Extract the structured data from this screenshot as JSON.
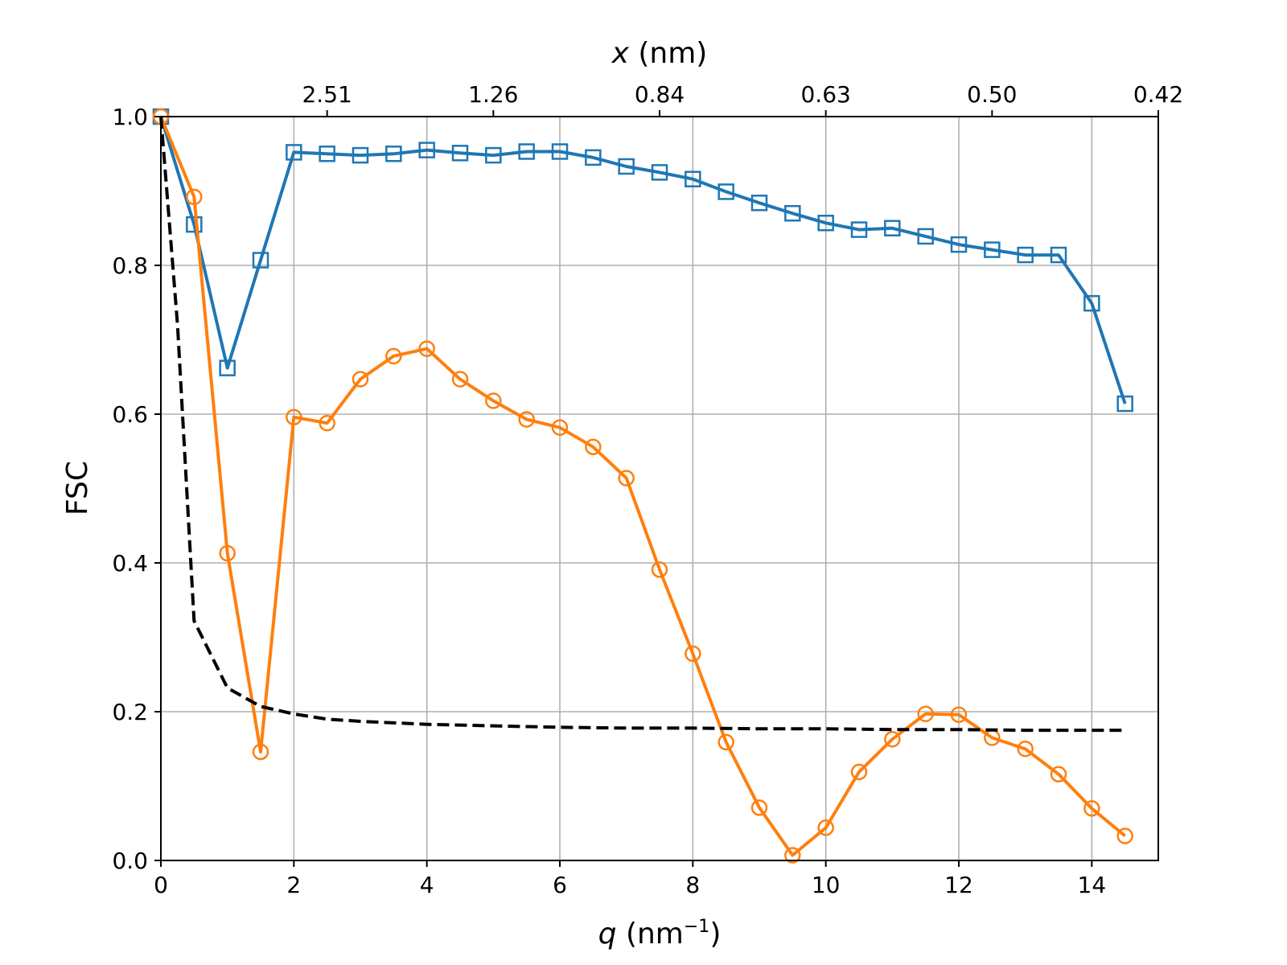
{
  "chart_data": {
    "type": "line",
    "xlabel": {
      "var": "q",
      "unit_open": " (nm",
      "unit_exp": "−1",
      "unit_close": ")"
    },
    "ylabel": "FSC",
    "top_xlabel": {
      "var": "x",
      "unit": " (nm)"
    },
    "xlim": [
      0,
      15
    ],
    "ylim": [
      0,
      1
    ],
    "x_ticks": [
      0,
      2,
      4,
      6,
      8,
      10,
      12,
      14
    ],
    "y_ticks": [
      0.0,
      0.2,
      0.4,
      0.6,
      0.8,
      1.0
    ],
    "x_tick_labels": [
      "0",
      "2",
      "4",
      "6",
      "8",
      "10",
      "12",
      "14"
    ],
    "y_tick_labels": [
      "0.0",
      "0.2",
      "0.4",
      "0.6",
      "0.8",
      "1.0"
    ],
    "top_ticks": [
      {
        "q": 2.5,
        "label": "2.51"
      },
      {
        "q": 5.0,
        "label": "1.26"
      },
      {
        "q": 7.5,
        "label": "0.84"
      },
      {
        "q": 10.0,
        "label": "0.63"
      },
      {
        "q": 12.5,
        "label": "0.50"
      },
      {
        "q": 15.0,
        "label": "0.42"
      }
    ],
    "grid": true,
    "series": [
      {
        "color": "#1f77b4",
        "marker": "square",
        "linestyle": "solid",
        "x": [
          0,
          0.5,
          1.0,
          1.5,
          2.0,
          2.5,
          3.0,
          3.5,
          4.0,
          4.5,
          5.0,
          5.5,
          6.0,
          6.5,
          7.0,
          7.5,
          8.0,
          8.5,
          9.0,
          9.5,
          10.0,
          10.5,
          11.0,
          11.5,
          12.0,
          12.5,
          13.0,
          13.5,
          14.0,
          14.5
        ],
        "y": [
          1.0,
          0.855,
          0.662,
          0.807,
          0.952,
          0.95,
          0.948,
          0.95,
          0.955,
          0.951,
          0.948,
          0.953,
          0.953,
          0.945,
          0.933,
          0.925,
          0.916,
          0.899,
          0.884,
          0.87,
          0.857,
          0.848,
          0.85,
          0.839,
          0.828,
          0.821,
          0.814,
          0.814,
          0.749,
          0.614
        ]
      },
      {
        "color": "#ff7f0e",
        "marker": "circle",
        "linestyle": "solid",
        "x": [
          0,
          0.5,
          1.0,
          1.5,
          2.0,
          2.5,
          3.0,
          3.5,
          4.0,
          4.5,
          5.0,
          5.5,
          6.0,
          6.5,
          7.0,
          7.5,
          8.0,
          8.5,
          9.0,
          9.5,
          10.0,
          10.5,
          11.0,
          11.5,
          12.0,
          12.5,
          13.0,
          13.5,
          14.0,
          14.5
        ],
        "y": [
          1.0,
          0.892,
          0.413,
          0.146,
          0.596,
          0.588,
          0.647,
          0.678,
          0.688,
          0.647,
          0.618,
          0.593,
          0.582,
          0.556,
          0.514,
          0.391,
          0.278,
          0.159,
          0.071,
          0.007,
          0.044,
          0.119,
          0.163,
          0.197,
          0.196,
          0.165,
          0.15,
          0.116,
          0.07,
          0.033
        ]
      },
      {
        "color": "#000000",
        "marker": "none",
        "linestyle": "dashed",
        "x": [
          0,
          0.25,
          0.5,
          1.0,
          1.5,
          2.0,
          2.5,
          3.0,
          4.0,
          5.0,
          6.0,
          7.0,
          8.0,
          9.0,
          10.0,
          11.0,
          12.0,
          13.0,
          14.0,
          14.5
        ],
        "y": [
          1.0,
          0.72,
          0.322,
          0.232,
          0.207,
          0.197,
          0.19,
          0.187,
          0.183,
          0.181,
          0.179,
          0.178,
          0.178,
          0.177,
          0.177,
          0.176,
          0.176,
          0.175,
          0.175,
          0.175
        ]
      }
    ]
  }
}
